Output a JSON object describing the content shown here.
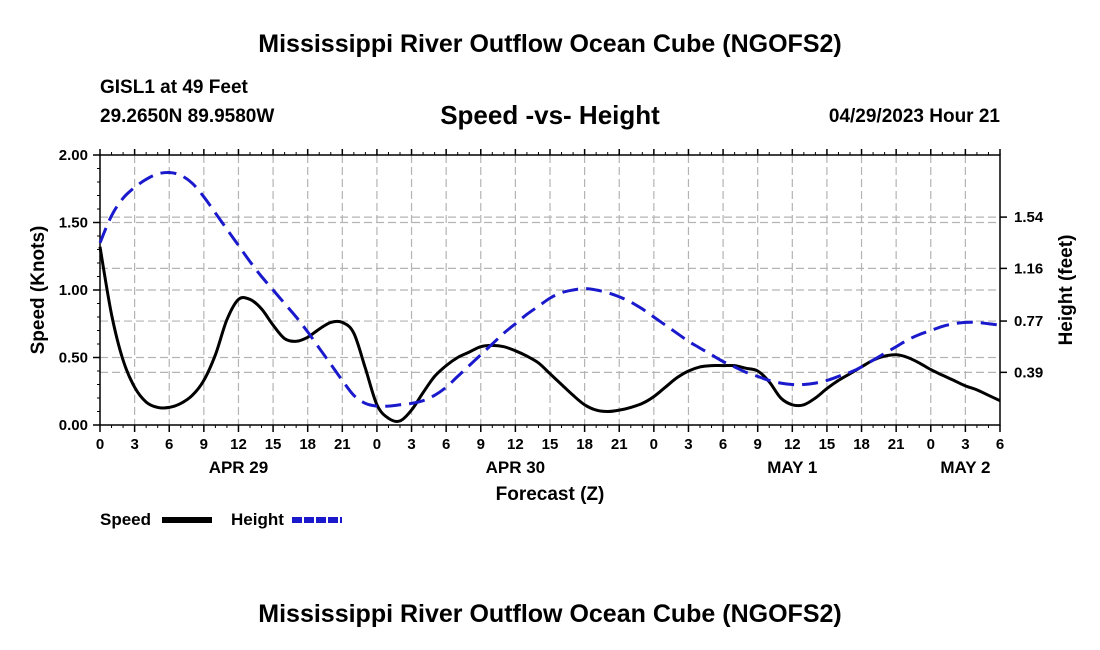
{
  "header": {
    "title": "Mississippi River Outflow Ocean Cube (NGOFS2)",
    "station": "GISL1 at 49 Feet",
    "coords": "29.2650N  89.9580W",
    "subtitle": "Speed -vs- Height",
    "datetime": "04/29/2023 Hour 21"
  },
  "footer": {
    "title": "Mississippi River Outflow Ocean Cube (NGOFS2)"
  },
  "legend": {
    "speed_label": "Speed",
    "height_label": "Height"
  },
  "colors": {
    "speed": "#000000",
    "height": "#1a1acc",
    "grid": "#b4b4b4"
  },
  "chart_data": {
    "type": "line",
    "title": "Speed -vs- Height",
    "xlabel": "Forecast (Z)",
    "ylabel": "Speed (Knots)",
    "y2label": "Height (feet)",
    "x_unit": "hours since APR 29 00Z",
    "xlim": [
      0,
      78
    ],
    "ylim": [
      0,
      2.0
    ],
    "y2lim": [
      0,
      2.0
    ],
    "x_ticks": [
      0,
      3,
      6,
      9,
      12,
      15,
      18,
      21,
      24,
      27,
      30,
      33,
      36,
      39,
      42,
      45,
      48,
      51,
      54,
      57,
      60,
      63,
      66,
      69,
      72,
      75,
      78
    ],
    "x_tick_labels": [
      "0",
      "3",
      "6",
      "9",
      "12",
      "15",
      "18",
      "21",
      "0",
      "3",
      "6",
      "9",
      "12",
      "15",
      "18",
      "21",
      "0",
      "3",
      "6",
      "9",
      "12",
      "15",
      "18",
      "21",
      "0",
      "3",
      "6"
    ],
    "y_ticks": [
      0,
      0.5,
      1.0,
      1.5,
      2.0
    ],
    "y_tick_labels": [
      "0.00",
      "0.50",
      "1.00",
      "1.50",
      "2.00"
    ],
    "y2_ticks": [
      0.39,
      0.77,
      1.16,
      1.54
    ],
    "y2_tick_labels": [
      "0.39",
      "0.77",
      "1.16",
      "1.54"
    ],
    "day_labels": [
      {
        "x": 12,
        "label": "APR 29"
      },
      {
        "x": 36,
        "label": "APR 30"
      },
      {
        "x": 60,
        "label": "MAY 1"
      },
      {
        "x": 75,
        "label": "MAY 2"
      }
    ],
    "series": [
      {
        "name": "Speed",
        "style": "solid",
        "axis": "left",
        "x": [
          0,
          1,
          2,
          3,
          4,
          5,
          6,
          7,
          8,
          9,
          10,
          11,
          12,
          13,
          14,
          15,
          16,
          17,
          18,
          19,
          20,
          21,
          22,
          23,
          24,
          25,
          26,
          27,
          28,
          29,
          30,
          31,
          32,
          33,
          34,
          35,
          36,
          37,
          38,
          39,
          40,
          41,
          42,
          43,
          44,
          45,
          46,
          47,
          48,
          49,
          50,
          51,
          52,
          53,
          54,
          55,
          56,
          57,
          58,
          59,
          60,
          61,
          62,
          63,
          64,
          65,
          66,
          67,
          68,
          69,
          70,
          71,
          72,
          73,
          74,
          75,
          76,
          77,
          78
        ],
        "values": [
          1.32,
          0.82,
          0.48,
          0.28,
          0.17,
          0.13,
          0.13,
          0.16,
          0.22,
          0.33,
          0.52,
          0.78,
          0.93,
          0.93,
          0.86,
          0.74,
          0.64,
          0.62,
          0.65,
          0.71,
          0.76,
          0.76,
          0.68,
          0.42,
          0.15,
          0.05,
          0.03,
          0.11,
          0.24,
          0.36,
          0.44,
          0.5,
          0.54,
          0.58,
          0.59,
          0.58,
          0.55,
          0.51,
          0.46,
          0.38,
          0.3,
          0.22,
          0.15,
          0.11,
          0.1,
          0.11,
          0.13,
          0.16,
          0.21,
          0.28,
          0.35,
          0.4,
          0.43,
          0.44,
          0.44,
          0.44,
          0.42,
          0.4,
          0.32,
          0.2,
          0.15,
          0.15,
          0.2,
          0.27,
          0.33,
          0.38,
          0.43,
          0.48,
          0.51,
          0.52,
          0.5,
          0.46,
          0.41,
          0.37,
          0.33,
          0.29,
          0.26,
          0.22,
          0.18
        ]
      },
      {
        "name": "Height",
        "style": "dashed",
        "axis": "right",
        "x": [
          0,
          1,
          2,
          3,
          4,
          5,
          6,
          7,
          8,
          9,
          10,
          11,
          12,
          13,
          14,
          15,
          16,
          17,
          18,
          19,
          20,
          21,
          22,
          23,
          24,
          25,
          26,
          27,
          28,
          29,
          30,
          31,
          32,
          33,
          34,
          35,
          36,
          37,
          38,
          39,
          40,
          41,
          42,
          43,
          44,
          45,
          46,
          47,
          48,
          49,
          50,
          51,
          52,
          53,
          54,
          55,
          56,
          57,
          58,
          59,
          60,
          61,
          62,
          63,
          64,
          65,
          66,
          67,
          68,
          69,
          70,
          71,
          72,
          73,
          74,
          75,
          76,
          77,
          78
        ],
        "values": [
          1.35,
          1.55,
          1.68,
          1.76,
          1.82,
          1.86,
          1.87,
          1.85,
          1.79,
          1.69,
          1.57,
          1.45,
          1.33,
          1.21,
          1.1,
          1.0,
          0.9,
          0.8,
          0.69,
          0.57,
          0.45,
          0.33,
          0.22,
          0.16,
          0.14,
          0.14,
          0.15,
          0.16,
          0.18,
          0.22,
          0.28,
          0.36,
          0.44,
          0.52,
          0.6,
          0.68,
          0.75,
          0.82,
          0.88,
          0.94,
          0.98,
          1.0,
          1.01,
          1.0,
          0.98,
          0.95,
          0.91,
          0.86,
          0.8,
          0.74,
          0.68,
          0.62,
          0.57,
          0.52,
          0.47,
          0.43,
          0.39,
          0.36,
          0.33,
          0.31,
          0.3,
          0.3,
          0.31,
          0.33,
          0.36,
          0.39,
          0.43,
          0.48,
          0.53,
          0.58,
          0.63,
          0.67,
          0.7,
          0.73,
          0.75,
          0.76,
          0.76,
          0.75,
          0.74
        ]
      }
    ]
  }
}
